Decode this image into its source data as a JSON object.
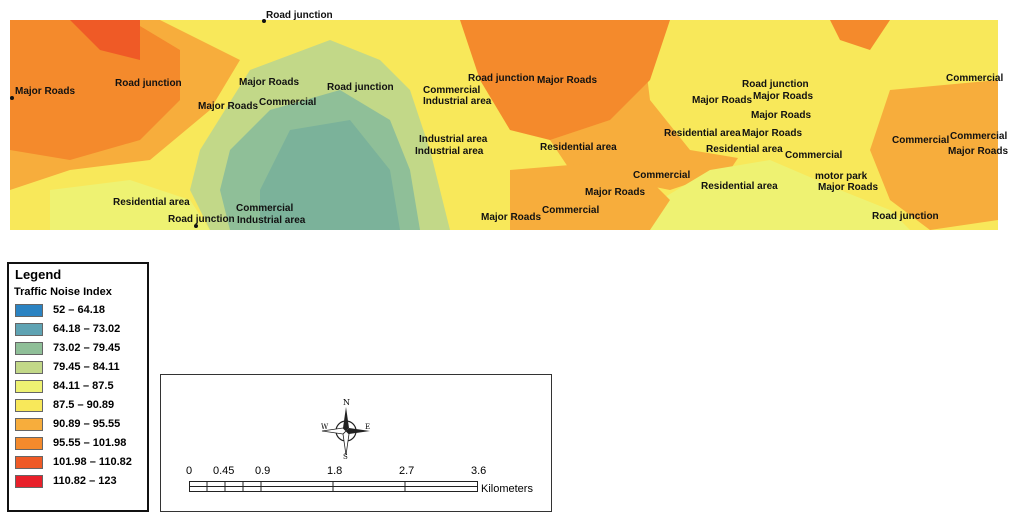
{
  "map": {
    "labels": [
      {
        "id": "road-junction-top",
        "text": "Road junction"
      },
      {
        "id": "major-roads-west",
        "text": "Major Roads"
      },
      {
        "id": "road-junction-west",
        "text": "Road junction"
      },
      {
        "id": "major-roads-center-1",
        "text": "Major Roads"
      },
      {
        "id": "major-roads-center-2",
        "text": "Major Roads"
      },
      {
        "id": "commercial-center",
        "text": "Commercial"
      },
      {
        "id": "road-junction-center",
        "text": "Road junction"
      },
      {
        "id": "commercial-mid",
        "text": "Commercial"
      },
      {
        "id": "industrial-area-mid",
        "text": "Industrial area"
      },
      {
        "id": "road-junction-mid",
        "text": "Road junction"
      },
      {
        "id": "major-roads-mid",
        "text": "Major Roads"
      },
      {
        "id": "industrial-area-2",
        "text": "Industrial area"
      },
      {
        "id": "industrial-area-3",
        "text": "Industrial area"
      },
      {
        "id": "residential-area-mid",
        "text": "Residential area"
      },
      {
        "id": "residential-area-sw",
        "text": "Residential area"
      },
      {
        "id": "road-junction-sw",
        "text": "Road junction"
      },
      {
        "id": "commercial-sw",
        "text": "Commercial"
      },
      {
        "id": "industrial-area-sw",
        "text": "Industrial area"
      },
      {
        "id": "commercial-south",
        "text": "Commercial"
      },
      {
        "id": "major-roads-south-1",
        "text": "Major Roads"
      },
      {
        "id": "major-roads-south-2",
        "text": "Major Roads"
      },
      {
        "id": "commercial-south-2",
        "text": "Commercial"
      },
      {
        "id": "road-junction-east",
        "text": "Road junction"
      },
      {
        "id": "major-roads-east-1",
        "text": "Major Roads"
      },
      {
        "id": "major-roads-east-2",
        "text": "Major Roads"
      },
      {
        "id": "major-roads-east-3",
        "text": "Major Roads"
      },
      {
        "id": "residential-area-east-1",
        "text": "Residential area"
      },
      {
        "id": "major-roads-east-4",
        "text": "Major Roads"
      },
      {
        "id": "residential-area-east-2",
        "text": "Residential area"
      },
      {
        "id": "commercial-east",
        "text": "Commercial"
      },
      {
        "id": "residential-area-east-3",
        "text": "Residential area"
      },
      {
        "id": "motor-park",
        "text": "motor park"
      },
      {
        "id": "major-roads-east-5",
        "text": "Major Roads"
      },
      {
        "id": "road-junction-se",
        "text": "Road junction"
      },
      {
        "id": "commercial-ne",
        "text": "Commercial"
      },
      {
        "id": "commercial-far-east",
        "text": "Commercial"
      },
      {
        "id": "commercial-far-east-2",
        "text": "Commercial"
      },
      {
        "id": "major-roads-far-east",
        "text": "Major Roads"
      }
    ]
  },
  "legend": {
    "title": "Legend",
    "subtitle": "Traffic Noise Index",
    "classes": [
      {
        "range": "52 – 64.18",
        "color": "#2b83c2"
      },
      {
        "range": "64.18 – 73.02",
        "color": "#5fa3b3"
      },
      {
        "range": "73.02 – 79.45",
        "color": "#8fbf98"
      },
      {
        "range": "79.45 – 84.11",
        "color": "#c2d888"
      },
      {
        "range": "84.11 – 87.5",
        "color": "#eef272"
      },
      {
        "range": "87.5 – 90.89",
        "color": "#f8e85a"
      },
      {
        "range": "90.89 – 95.55",
        "color": "#f7ad3c"
      },
      {
        "range": "95.55 – 101.98",
        "color": "#f48a2c"
      },
      {
        "range": "101.98 – 110.82",
        "color": "#ef5a26"
      },
      {
        "range": "110.82 – 123",
        "color": "#e8202a"
      }
    ]
  },
  "scalebar": {
    "ticks": [
      "0",
      "0.45",
      "0.9",
      "1.8",
      "2.7",
      "3.6"
    ],
    "unit": "Kilometers",
    "compass": {
      "n": "N",
      "s": "S",
      "e": "E",
      "w": "W"
    }
  }
}
